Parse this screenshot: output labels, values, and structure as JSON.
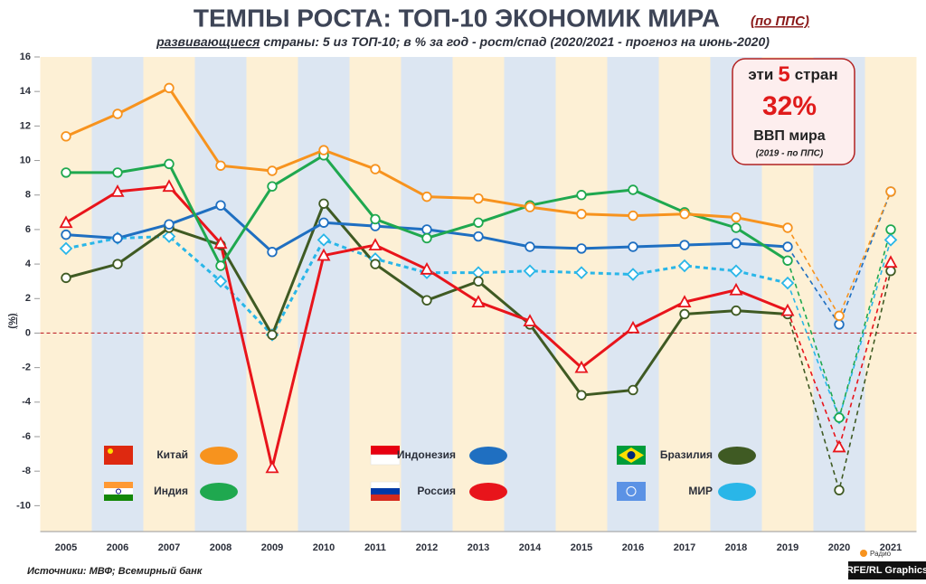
{
  "chart_data": {
    "type": "line",
    "title": "ТЕМПЫ РОСТА: ТОП-10 ЭКОНОМИК МИРА",
    "title_note": "(по ППС)",
    "subtitle_emphasis": "развивающиеся",
    "subtitle": "страны: 5 из ТОП-10; в % за год - рост/спад (2020/2021 - прогноз на июнь-2020)",
    "y_label": "(%)",
    "callout": {
      "prefix": "эти",
      "count": "5",
      "suffix": "стран",
      "share": "32%",
      "share_label": "ВВП мира",
      "note": "(2019 - по ППС)"
    },
    "source": "Источники: МВФ; Всемирный банк",
    "credit": "RFE/RL Graphics",
    "logo": "Радио",
    "categories": [
      "2005",
      "2006",
      "2007",
      "2008",
      "2009",
      "2010",
      "2011",
      "2012",
      "2013",
      "2014",
      "2015",
      "2016",
      "2017",
      "2018",
      "2019",
      "2020",
      "2021"
    ],
    "dashed_from_index": 14,
    "ylim": [
      -11.5,
      16
    ],
    "yticks": [
      -10,
      -8,
      -6,
      -4,
      -2,
      0,
      2,
      4,
      6,
      8,
      10,
      12,
      14,
      16
    ],
    "series": [
      {
        "name": "Китай",
        "color": "#f7931e",
        "marker": "circle",
        "values": [
          11.4,
          12.7,
          14.2,
          9.7,
          9.4,
          10.6,
          9.5,
          7.9,
          7.8,
          7.3,
          6.9,
          6.8,
          6.9,
          6.7,
          6.1,
          1.0,
          8.2
        ]
      },
      {
        "name": "Индия",
        "color": "#1fa84f",
        "marker": "circle",
        "values": [
          9.3,
          9.3,
          9.8,
          3.9,
          8.5,
          10.3,
          6.6,
          5.5,
          6.4,
          7.4,
          8.0,
          8.3,
          7.0,
          6.1,
          4.2,
          -4.9,
          6.0
        ]
      },
      {
        "name": "Индонезия",
        "color": "#1f6fc1",
        "marker": "circle",
        "values": [
          5.7,
          5.5,
          6.3,
          7.4,
          4.7,
          6.4,
          6.2,
          6.0,
          5.6,
          5.0,
          4.9,
          5.0,
          5.1,
          5.2,
          5.0,
          0.5,
          8.2
        ]
      },
      {
        "name": "Россия",
        "color": "#e8141b",
        "marker": "triangle",
        "values": [
          6.4,
          8.2,
          8.5,
          5.2,
          -7.8,
          4.5,
          5.1,
          3.7,
          1.8,
          0.7,
          -2.0,
          0.3,
          1.8,
          2.5,
          1.3,
          -6.6,
          4.1
        ]
      },
      {
        "name": "Бразилия",
        "color": "#3f5a23",
        "marker": "circle",
        "values": [
          3.2,
          4.0,
          6.1,
          5.1,
          -0.1,
          7.5,
          4.0,
          1.9,
          3.0,
          0.5,
          -3.6,
          -3.3,
          1.1,
          1.3,
          1.1,
          -9.1,
          3.6
        ]
      },
      {
        "name": "МИР",
        "color": "#29b6e8",
        "marker": "diamond",
        "dashed": true,
        "values": [
          4.9,
          5.5,
          5.6,
          3.0,
          -0.1,
          5.4,
          4.3,
          3.5,
          3.5,
          3.6,
          3.5,
          3.4,
          3.9,
          3.6,
          2.9,
          -4.9,
          5.4
        ]
      }
    ]
  }
}
